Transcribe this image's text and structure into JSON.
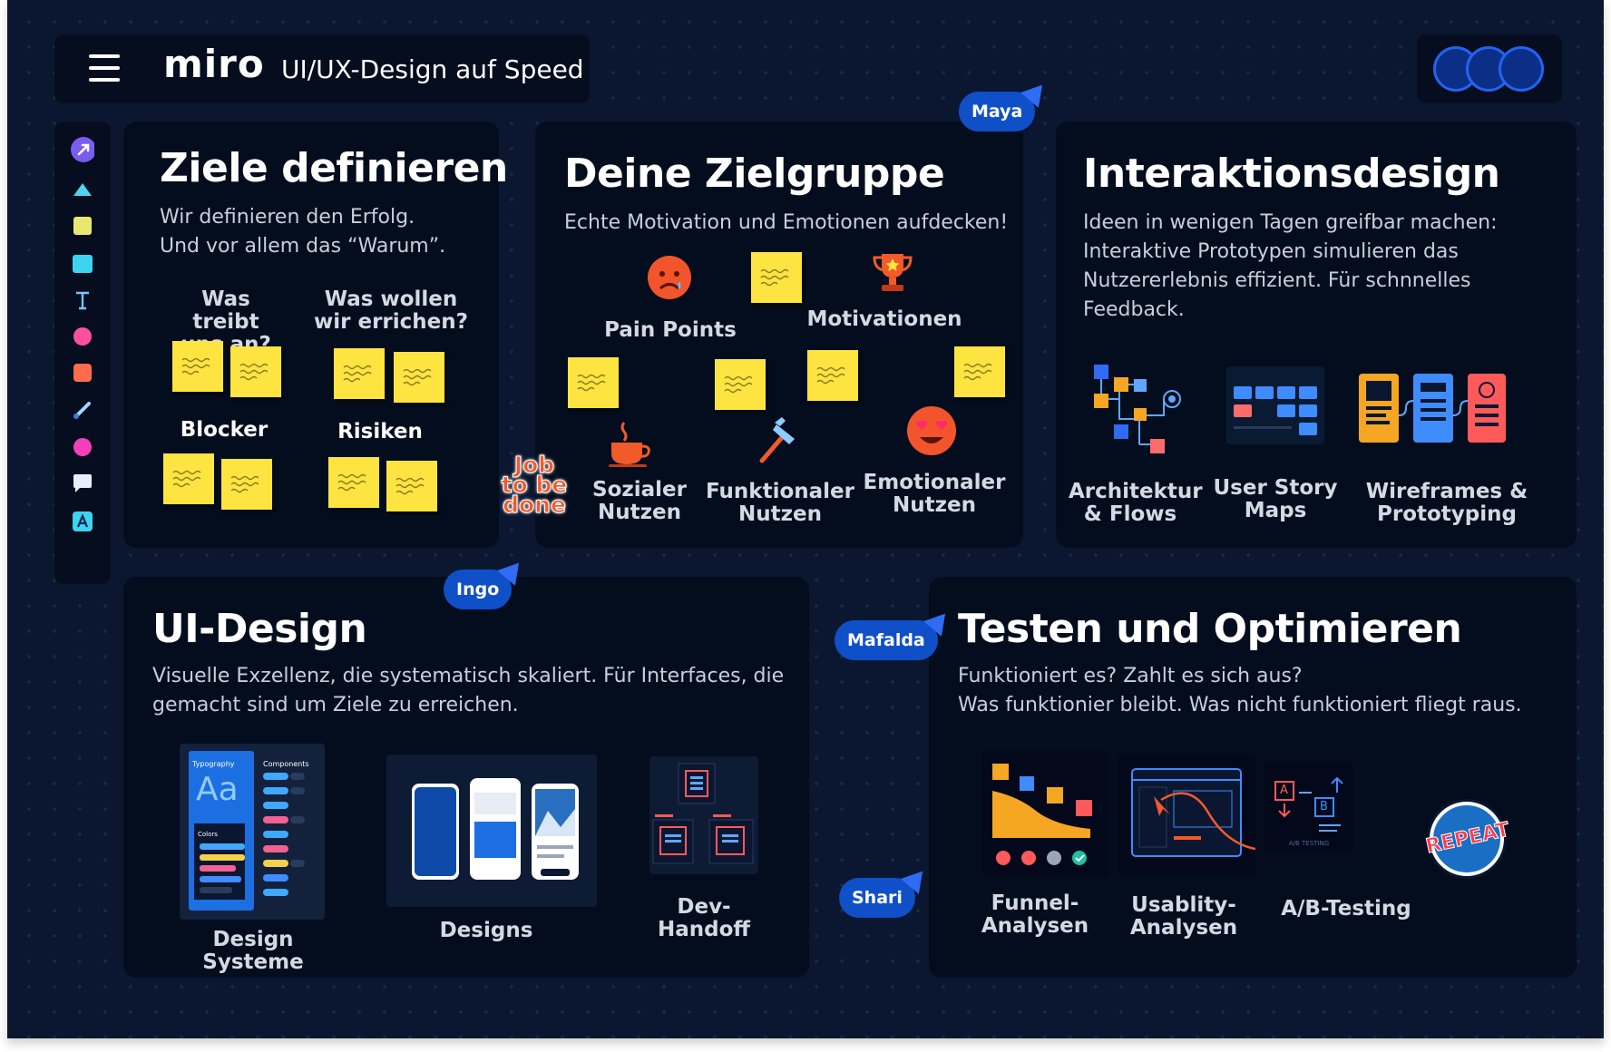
{
  "topbar": {
    "logo": "miro",
    "board_name": "UI/UX-Design auf Speed"
  },
  "avatars": [
    {
      "name": "avatar-1"
    },
    {
      "name": "avatar-2"
    },
    {
      "name": "avatar-3"
    }
  ],
  "toolbar": {
    "tools": [
      "pointer-icon",
      "shape-triangle-icon",
      "sticky-note-yellow-icon",
      "sticky-note-cyan-icon",
      "text-icon",
      "circle-pink-icon",
      "square-coral-icon",
      "pen-icon",
      "circle-magenta-icon",
      "comment-icon",
      "frame-icon"
    ]
  },
  "cursors": {
    "maya": "Maya",
    "ingo": "Ingo",
    "mafalda": "Mafalda",
    "shari": "Shari"
  },
  "colors": {
    "board": "#0b1730",
    "frame": "#040d1d",
    "sticky": "#fde441",
    "cursor": "#0f50c9",
    "accent": "#2462f0"
  },
  "ziele": {
    "title": "Ziele definieren",
    "desc": [
      "Wir definieren den Erfolg.",
      "Und vor allem das “Warum”."
    ],
    "q1": [
      "Was treibt",
      "uns an?"
    ],
    "q2": [
      "Was wollen",
      "wir errichen?"
    ],
    "blocker": "Blocker",
    "risiken": "Risiken"
  },
  "jtbd": [
    "Job",
    "to be",
    "done"
  ],
  "zielgruppe": {
    "title": "Deine Zielgruppe",
    "desc": "Echte Motivation und Emotionen aufdecken!",
    "pain": "Pain Points",
    "motiv": "Motivationen",
    "sozial": [
      "Sozialer",
      "Nutzen"
    ],
    "funktional": [
      "Funktionaler",
      "Nutzen"
    ],
    "emotional": [
      "Emotionaler",
      "Nutzen"
    ]
  },
  "interaktion": {
    "title": "Interaktionsdesign",
    "desc": [
      "Ideen  in wenigen Tagen greifbar machen:",
      "Interaktive Prototypen simulieren das",
      "Nutzererlebnis effizient. Für schnnelles",
      "Feedback."
    ],
    "arch": [
      "Architektur",
      "& Flows"
    ],
    "story": [
      "User Story",
      "Maps"
    ],
    "wire": [
      "Wireframes &",
      "Prototyping"
    ]
  },
  "ui": {
    "title": "UI-Design",
    "desc": [
      "Visuelle Exzellenz, die systematisch skaliert. Für Interfaces, die",
      "gemacht sind um Ziele zu erreichen."
    ],
    "ds": "Design Systeme",
    "designs": "Designs",
    "handoff": "Dev-Handoff",
    "ds_typo": "Typography",
    "ds_comp": "Components",
    "ds_aa": "Aa",
    "ds_colors": "Colors"
  },
  "testen": {
    "title": "Testen und Optimieren",
    "desc": [
      "Funktioniert es? Zahlt es sich aus?",
      "Was funktionier bleibt. Was nicht funktioniert fliegt raus."
    ],
    "funnel": [
      "Funnel-",
      "Analysen"
    ],
    "usab": [
      "Usablity-",
      "Analysen"
    ],
    "ab": "A/B-Testing",
    "ab_caption": "A/B TESTING",
    "ab_a": "A",
    "ab_b": "B",
    "repeat": "REPEAT"
  }
}
